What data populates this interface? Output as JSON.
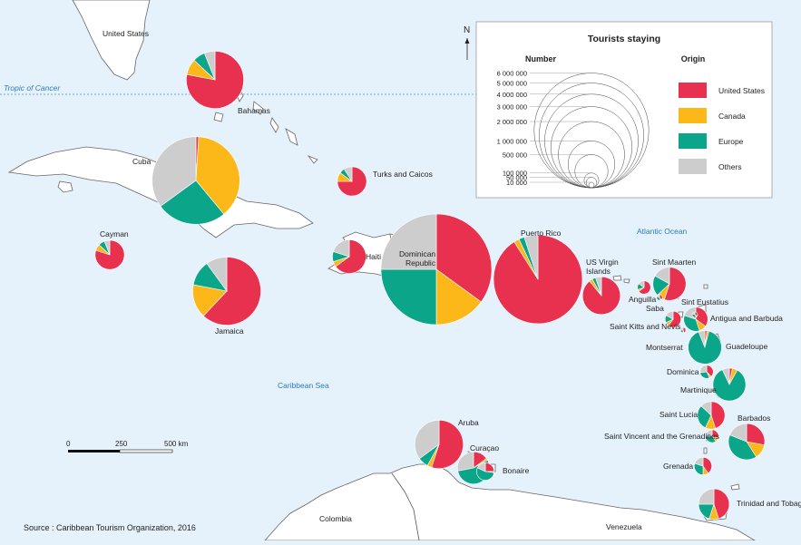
{
  "colors": {
    "sea": "#e6f2fb",
    "land": "#ffffff",
    "coast": "#555555",
    "us": "#e8304f",
    "canada": "#fbb818",
    "europe": "#0ba58a",
    "others": "#cdcdcd",
    "water_label": "#2b7bbf"
  },
  "labels": {
    "tropic": "Tropic of Cancer",
    "caribbean_sea": "Caribbean Sea",
    "atlantic": "Atlantic Ocean",
    "united_states": "United States",
    "colombia": "Colombia",
    "venezuela": "Venezuela",
    "north": "N",
    "source": "Source : Caribbean Tourism Organization, 2016"
  },
  "scale": {
    "ticks": [
      "0",
      "250",
      "500 km"
    ]
  },
  "legend": {
    "title": "Tourists staying",
    "number_heading": "Number",
    "origin_heading": "Origin",
    "sizes": [
      {
        "label": "6 000 000",
        "value": 6000000
      },
      {
        "label": "5 000 000",
        "value": 5000000
      },
      {
        "label": "4 000 000",
        "value": 4000000
      },
      {
        "label": "3 000 000",
        "value": 3000000
      },
      {
        "label": "2 000 000",
        "value": 2000000
      },
      {
        "label": "1 000 000",
        "value": 1000000
      },
      {
        "label": "500 000",
        "value": 500000
      },
      {
        "label": "100 000",
        "value": 100000
      },
      {
        "label": "50 000",
        "value": 50000
      },
      {
        "label": "10 000",
        "value": 10000
      }
    ],
    "origins": [
      {
        "key": "us",
        "label": "United States"
      },
      {
        "key": "canada",
        "label": "Canada"
      },
      {
        "key": "europe",
        "label": "Europe"
      },
      {
        "key": "others",
        "label": "Others"
      }
    ]
  },
  "destinations": [
    {
      "name": "Bahamas",
      "total": 1500000,
      "shares": [
        0.78,
        0.09,
        0.07,
        0.06
      ]
    },
    {
      "name": "Cuba",
      "total": 3500000,
      "shares": [
        0.01,
        0.38,
        0.26,
        0.35
      ]
    },
    {
      "name": "Turks and Caicos",
      "total": 390000,
      "shares": [
        0.75,
        0.1,
        0.06,
        0.09
      ]
    },
    {
      "name": "Cayman",
      "total": 390000,
      "shares": [
        0.8,
        0.07,
        0.07,
        0.06
      ]
    },
    {
      "name": "Haiti",
      "total": 515000,
      "shares": [
        0.65,
        0.05,
        0.1,
        0.2
      ]
    },
    {
      "name": "Jamaica",
      "total": 2120000,
      "shares": [
        0.62,
        0.16,
        0.12,
        0.1
      ]
    },
    {
      "name": "Dominican Republic",
      "total": 5600000,
      "shares": [
        0.35,
        0.15,
        0.25,
        0.25
      ]
    },
    {
      "name": "Puerto Rico",
      "total": 3600000,
      "shares": [
        0.91,
        0.02,
        0.02,
        0.05
      ]
    },
    {
      "name": "US Virgin Islands",
      "total": 650000,
      "shares": [
        0.89,
        0.03,
        0.03,
        0.05
      ]
    },
    {
      "name": "Anguilla",
      "total": 79000,
      "shares": [
        0.65,
        0.05,
        0.15,
        0.15
      ]
    },
    {
      "name": "Saba",
      "total": 15000,
      "shares": [
        0.4,
        0.05,
        0.35,
        0.2
      ]
    },
    {
      "name": "Sint Maarten",
      "total": 500000,
      "shares": [
        0.55,
        0.08,
        0.2,
        0.17
      ]
    },
    {
      "name": "Sint Eustatius",
      "total": 12000,
      "shares": [
        0.35,
        0.05,
        0.4,
        0.2
      ]
    },
    {
      "name": "Saint Kitts and Nevis",
      "total": 115000,
      "shares": [
        0.6,
        0.08,
        0.15,
        0.17
      ]
    },
    {
      "name": "Antigua and Barbuda",
      "total": 265000,
      "shares": [
        0.35,
        0.1,
        0.35,
        0.2
      ]
    },
    {
      "name": "Montserrat",
      "total": 9000,
      "shares": [
        0.45,
        0.05,
        0.25,
        0.25
      ]
    },
    {
      "name": "Guadeloupe",
      "total": 510000,
      "shares": [
        0.02,
        0.02,
        0.9,
        0.06
      ]
    },
    {
      "name": "Dominica",
      "total": 80000,
      "shares": [
        0.38,
        0.05,
        0.3,
        0.27
      ]
    },
    {
      "name": "Martinique",
      "total": 490000,
      "shares": [
        0.03,
        0.05,
        0.85,
        0.07
      ]
    },
    {
      "name": "Saint Lucia",
      "total": 345000,
      "shares": [
        0.45,
        0.12,
        0.3,
        0.13
      ]
    },
    {
      "name": "Barbados",
      "total": 600000,
      "shares": [
        0.28,
        0.13,
        0.4,
        0.19
      ]
    },
    {
      "name": "Saint Vincent and the Grenadines",
      "total": 75000,
      "shares": [
        0.3,
        0.1,
        0.35,
        0.25
      ]
    },
    {
      "name": "Grenada",
      "total": 140000,
      "shares": [
        0.4,
        0.1,
        0.3,
        0.2
      ]
    },
    {
      "name": "Trinidad and Tobago",
      "total": 430000,
      "shares": [
        0.45,
        0.1,
        0.2,
        0.25
      ]
    },
    {
      "name": "Aruba",
      "total": 1070000,
      "shares": [
        0.55,
        0.03,
        0.07,
        0.35
      ]
    },
    {
      "name": "Curaçao",
      "total": 470000,
      "shares": [
        0.15,
        0.02,
        0.55,
        0.28
      ]
    },
    {
      "name": "Bonaire",
      "total": 140000,
      "shares": [
        0.25,
        0.02,
        0.55,
        0.18
      ]
    }
  ]
}
